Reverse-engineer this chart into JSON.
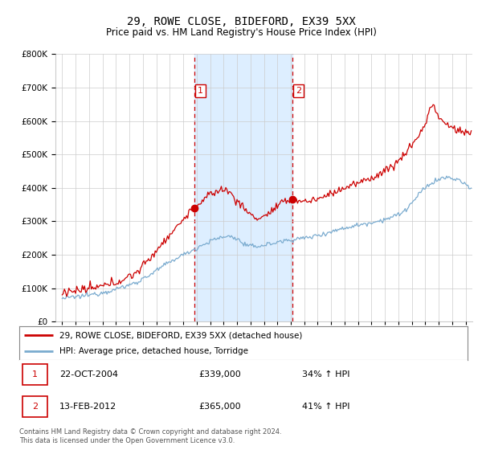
{
  "title": "29, ROWE CLOSE, BIDEFORD, EX39 5XX",
  "subtitle": "Price paid vs. HM Land Registry's House Price Index (HPI)",
  "title_fontsize": 10,
  "subtitle_fontsize": 8.5,
  "ytick_values": [
    0,
    100000,
    200000,
    300000,
    400000,
    500000,
    600000,
    700000,
    800000
  ],
  "ylim": [
    0,
    800000
  ],
  "xlim_start": 1994.5,
  "xlim_end": 2025.5,
  "sale1_x": 2004.81,
  "sale1_y": 339000,
  "sale1_label": "1",
  "sale1_date": "22-OCT-2004",
  "sale1_price": "£339,000",
  "sale1_hpi": "34% ↑ HPI",
  "sale2_x": 2012.12,
  "sale2_y": 365000,
  "sale2_label": "2",
  "sale2_date": "13-FEB-2012",
  "sale2_price": "£365,000",
  "sale2_hpi": "41% ↑ HPI",
  "line_color_red": "#cc0000",
  "line_color_blue": "#7aabcf",
  "shade_color": "#ddeeff",
  "grid_color": "#cccccc",
  "background_color": "#ffffff",
  "legend_line1": "29, ROWE CLOSE, BIDEFORD, EX39 5XX (detached house)",
  "legend_line2": "HPI: Average price, detached house, Torridge",
  "footer": "Contains HM Land Registry data © Crown copyright and database right 2024.\nThis data is licensed under the Open Government Licence v3.0.",
  "marker_box_color": "#cc0000"
}
